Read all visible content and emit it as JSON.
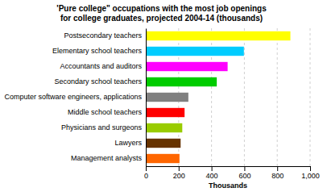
{
  "chart_data": {
    "type": "bar",
    "orientation": "horizontal",
    "title": "'Pure college\" occupations with the most job openings\nfor college graduates, projected 2004-14 (thousands)",
    "categories": [
      "Management analysts",
      "Lawyers",
      "Physicians and surgeons",
      "Middle school teachers",
      "Computer software engineers, applications",
      "Secondary school teachers",
      "Accountants and auditors",
      "Elementary school teachers",
      "Postsecondary teachers"
    ],
    "values": [
      205,
      212,
      222,
      236,
      259,
      432,
      498,
      597,
      880
    ],
    "colors": [
      "#FF6600",
      "#663300",
      "#99CC00",
      "#FF0000",
      "#808080",
      "#00CC00",
      "#FF00FF",
      "#00CCFF",
      "#FFFF00"
    ],
    "xlabel": "Thousands",
    "xlim": [
      0,
      1000
    ],
    "xticks": [
      0,
      200,
      400,
      600,
      800,
      {
        "value": 1000,
        "label": "1,000"
      }
    ],
    "grid": true
  }
}
